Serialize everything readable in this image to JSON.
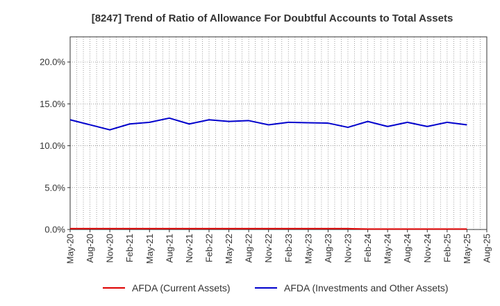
{
  "chart_data": {
    "type": "line",
    "title": "[8247]  Trend of Ratio of Allowance For Doubtful Accounts to Total Assets",
    "xlabel": "",
    "ylabel": "",
    "ylim": [
      0,
      0.23
    ],
    "y_ticks": [
      0,
      0.05,
      0.1,
      0.15,
      0.2
    ],
    "y_tick_labels": [
      "0.0%",
      "5.0%",
      "10.0%",
      "15.0%",
      "20.0%"
    ],
    "grid": true,
    "legend_position": "bottom",
    "x_tick_labels": [
      "May-20",
      "Aug-20",
      "Nov-20",
      "Feb-21",
      "May-21",
      "Aug-21",
      "Nov-21",
      "Feb-22",
      "May-22",
      "Aug-22",
      "Nov-22",
      "Feb-23",
      "May-23",
      "Aug-23",
      "Nov-23",
      "Feb-24",
      "May-24",
      "Aug-24",
      "Nov-24",
      "Feb-25",
      "May-25",
      "Aug-25"
    ],
    "x": [
      "May-20",
      "Aug-20",
      "Nov-20",
      "Feb-21",
      "May-21",
      "Aug-21",
      "Nov-21",
      "Feb-22",
      "May-22",
      "Aug-22",
      "Nov-22",
      "Feb-23",
      "May-23",
      "Aug-23",
      "Nov-23",
      "Feb-24",
      "May-24",
      "Aug-24",
      "Nov-24",
      "Feb-25",
      "May-25"
    ],
    "series": [
      {
        "name": "AFDA (Current Assets)",
        "color": "#dd0000",
        "values": [
          0.001,
          0.001,
          0.001,
          0.001,
          0.001,
          0.001,
          0.001,
          0.001,
          0.001,
          0.001,
          0.001,
          0.001,
          0.001,
          0.001,
          0.001,
          0.0005,
          0.0005,
          0.0005,
          0.0005,
          0.0005,
          0.0005
        ]
      },
      {
        "name": "AFDA (Investments and Other Assets)",
        "color": "#0000cc",
        "values": [
          0.131,
          0.125,
          0.119,
          0.126,
          0.128,
          0.133,
          0.126,
          0.131,
          0.129,
          0.13,
          0.125,
          0.128,
          0.1275,
          0.127,
          0.122,
          0.129,
          0.123,
          0.128,
          0.123,
          0.128,
          0.125
        ]
      }
    ]
  }
}
